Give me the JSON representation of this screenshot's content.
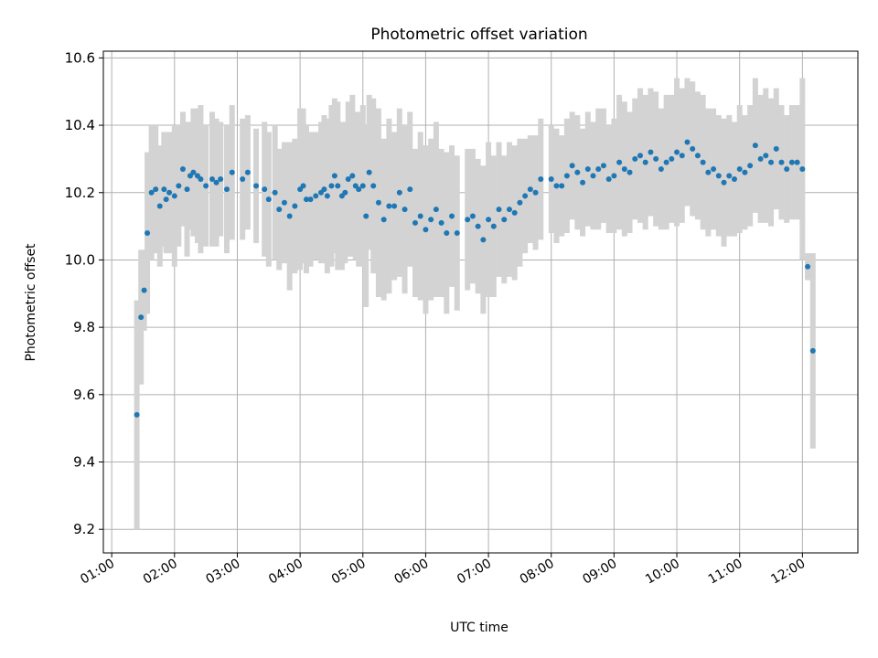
{
  "chart_data": {
    "type": "scatter",
    "title": "Photometric offset variation",
    "xlabel": "UTC time",
    "ylabel": "Photometric offset",
    "x_ticks": [
      "01:00",
      "02:00",
      "03:00",
      "04:00",
      "05:00",
      "06:00",
      "07:00",
      "08:00",
      "09:00",
      "10:00",
      "11:00",
      "12:00"
    ],
    "y_ticks": [
      "9.2",
      "9.4",
      "9.6",
      "9.8",
      "10.0",
      "10.2",
      "10.4",
      "10.6"
    ],
    "xlim": [
      "00:52",
      "12:53"
    ],
    "ylim": [
      9.13,
      10.62
    ],
    "grid": true,
    "colors": {
      "marker": "#1f77b4",
      "errorbar": "#d3d3d3",
      "grid": "#b0b0b0",
      "axis": "#000000"
    },
    "series": [
      {
        "x": [
          "01:24",
          "01:28",
          "01:31",
          "01:34",
          "01:38",
          "01:42",
          "01:46",
          "01:50",
          "01:52",
          "01:55",
          "02:00",
          "02:04",
          "02:08",
          "02:12",
          "02:15",
          "02:18",
          "02:22",
          "02:25",
          "02:30",
          "02:36",
          "02:40",
          "02:44",
          "02:50",
          "02:55",
          "03:05",
          "03:10",
          "03:18",
          "03:26",
          "03:30",
          "03:36",
          "03:40",
          "03:45",
          "03:50",
          "03:55",
          "04:00",
          "04:03",
          "04:06",
          "04:10",
          "04:15",
          "04:20",
          "04:23",
          "04:26",
          "04:30",
          "04:33",
          "04:36",
          "04:40",
          "04:43",
          "04:46",
          "04:50",
          "04:53",
          "04:56",
          "05:00",
          "05:03",
          "05:06",
          "05:10",
          "05:15",
          "05:20",
          "05:25",
          "05:30",
          "05:35",
          "05:40",
          "05:45",
          "05:50",
          "05:55",
          "06:00",
          "06:05",
          "06:10",
          "06:15",
          "06:20",
          "06:25",
          "06:30",
          "06:40",
          "06:45",
          "06:50",
          "06:55",
          "07:00",
          "07:05",
          "07:10",
          "07:15",
          "07:20",
          "07:25",
          "07:30",
          "07:35",
          "07:40",
          "07:45",
          "07:50",
          "08:00",
          "08:05",
          "08:10",
          "08:15",
          "08:20",
          "08:25",
          "08:30",
          "08:35",
          "08:40",
          "08:45",
          "08:50",
          "08:55",
          "09:00",
          "09:05",
          "09:10",
          "09:15",
          "09:20",
          "09:25",
          "09:30",
          "09:35",
          "09:40",
          "09:45",
          "09:50",
          "09:55",
          "10:00",
          "10:05",
          "10:10",
          "10:15",
          "10:20",
          "10:25",
          "10:30",
          "10:35",
          "10:40",
          "10:45",
          "10:50",
          "10:55",
          "11:00",
          "11:05",
          "11:10",
          "11:15",
          "11:20",
          "11:25",
          "11:30",
          "11:35",
          "11:40",
          "11:45",
          "11:50",
          "11:55",
          "12:00",
          "12:05",
          "12:10"
        ],
        "y": [
          9.54,
          9.83,
          9.91,
          10.08,
          10.2,
          10.21,
          10.16,
          10.21,
          10.18,
          10.2,
          10.19,
          10.22,
          10.27,
          10.21,
          10.25,
          10.26,
          10.25,
          10.24,
          10.22,
          10.24,
          10.23,
          10.24,
          10.21,
          10.26,
          10.24,
          10.26,
          10.22,
          10.21,
          10.18,
          10.2,
          10.15,
          10.17,
          10.13,
          10.16,
          10.21,
          10.22,
          10.18,
          10.18,
          10.19,
          10.2,
          10.21,
          10.19,
          10.22,
          10.25,
          10.22,
          10.19,
          10.2,
          10.24,
          10.25,
          10.22,
          10.21,
          10.22,
          10.13,
          10.26,
          10.22,
          10.17,
          10.12,
          10.16,
          10.16,
          10.2,
          10.15,
          10.21,
          10.11,
          10.13,
          10.09,
          10.12,
          10.15,
          10.11,
          10.08,
          10.13,
          10.08,
          10.12,
          10.13,
          10.1,
          10.06,
          10.12,
          10.1,
          10.15,
          10.12,
          10.15,
          10.14,
          10.17,
          10.19,
          10.21,
          10.2,
          10.24,
          10.24,
          10.22,
          10.22,
          10.25,
          10.28,
          10.26,
          10.23,
          10.27,
          10.25,
          10.27,
          10.28,
          10.24,
          10.25,
          10.29,
          10.27,
          10.26,
          10.3,
          10.31,
          10.29,
          10.32,
          10.3,
          10.27,
          10.29,
          10.3,
          10.32,
          10.31,
          10.35,
          10.33,
          10.31,
          10.29,
          10.26,
          10.27,
          10.25,
          10.23,
          10.25,
          10.24,
          10.27,
          10.26,
          10.28,
          10.34,
          10.3,
          10.31,
          10.29,
          10.33,
          10.29,
          10.27,
          10.29,
          10.29,
          10.27,
          9.98,
          9.73
        ],
        "error": [
          0.34,
          0.2,
          0.12,
          0.24,
          0.2,
          0.19,
          0.18,
          0.17,
          0.16,
          0.18,
          0.21,
          0.18,
          0.17,
          0.2,
          0.16,
          0.19,
          0.2,
          0.22,
          0.18,
          0.2,
          0.19,
          0.17,
          0.19,
          0.2,
          0.18,
          0.17,
          0.17,
          0.2,
          0.2,
          0.2,
          0.18,
          0.18,
          0.22,
          0.2,
          0.24,
          0.23,
          0.22,
          0.2,
          0.19,
          0.21,
          0.22,
          0.23,
          0.24,
          0.23,
          0.25,
          0.22,
          0.21,
          0.23,
          0.24,
          0.22,
          0.23,
          0.24,
          0.27,
          0.23,
          0.26,
          0.28,
          0.24,
          0.26,
          0.22,
          0.25,
          0.25,
          0.23,
          0.22,
          0.25,
          0.25,
          0.24,
          0.26,
          0.22,
          0.24,
          0.21,
          0.23,
          0.21,
          0.2,
          0.2,
          0.22,
          0.23,
          0.21,
          0.2,
          0.19,
          0.2,
          0.2,
          0.19,
          0.17,
          0.16,
          0.17,
          0.18,
          0.16,
          0.17,
          0.15,
          0.17,
          0.16,
          0.17,
          0.16,
          0.17,
          0.16,
          0.18,
          0.17,
          0.16,
          0.17,
          0.2,
          0.2,
          0.18,
          0.18,
          0.2,
          0.2,
          0.19,
          0.2,
          0.18,
          0.2,
          0.19,
          0.22,
          0.2,
          0.19,
          0.2,
          0.19,
          0.2,
          0.19,
          0.18,
          0.18,
          0.19,
          0.18,
          0.17,
          0.19,
          0.17,
          0.18,
          0.2,
          0.19,
          0.2,
          0.19,
          0.18,
          0.17,
          0.16,
          0.17,
          0.17,
          0.27,
          0.04,
          0.29
        ]
      }
    ]
  }
}
